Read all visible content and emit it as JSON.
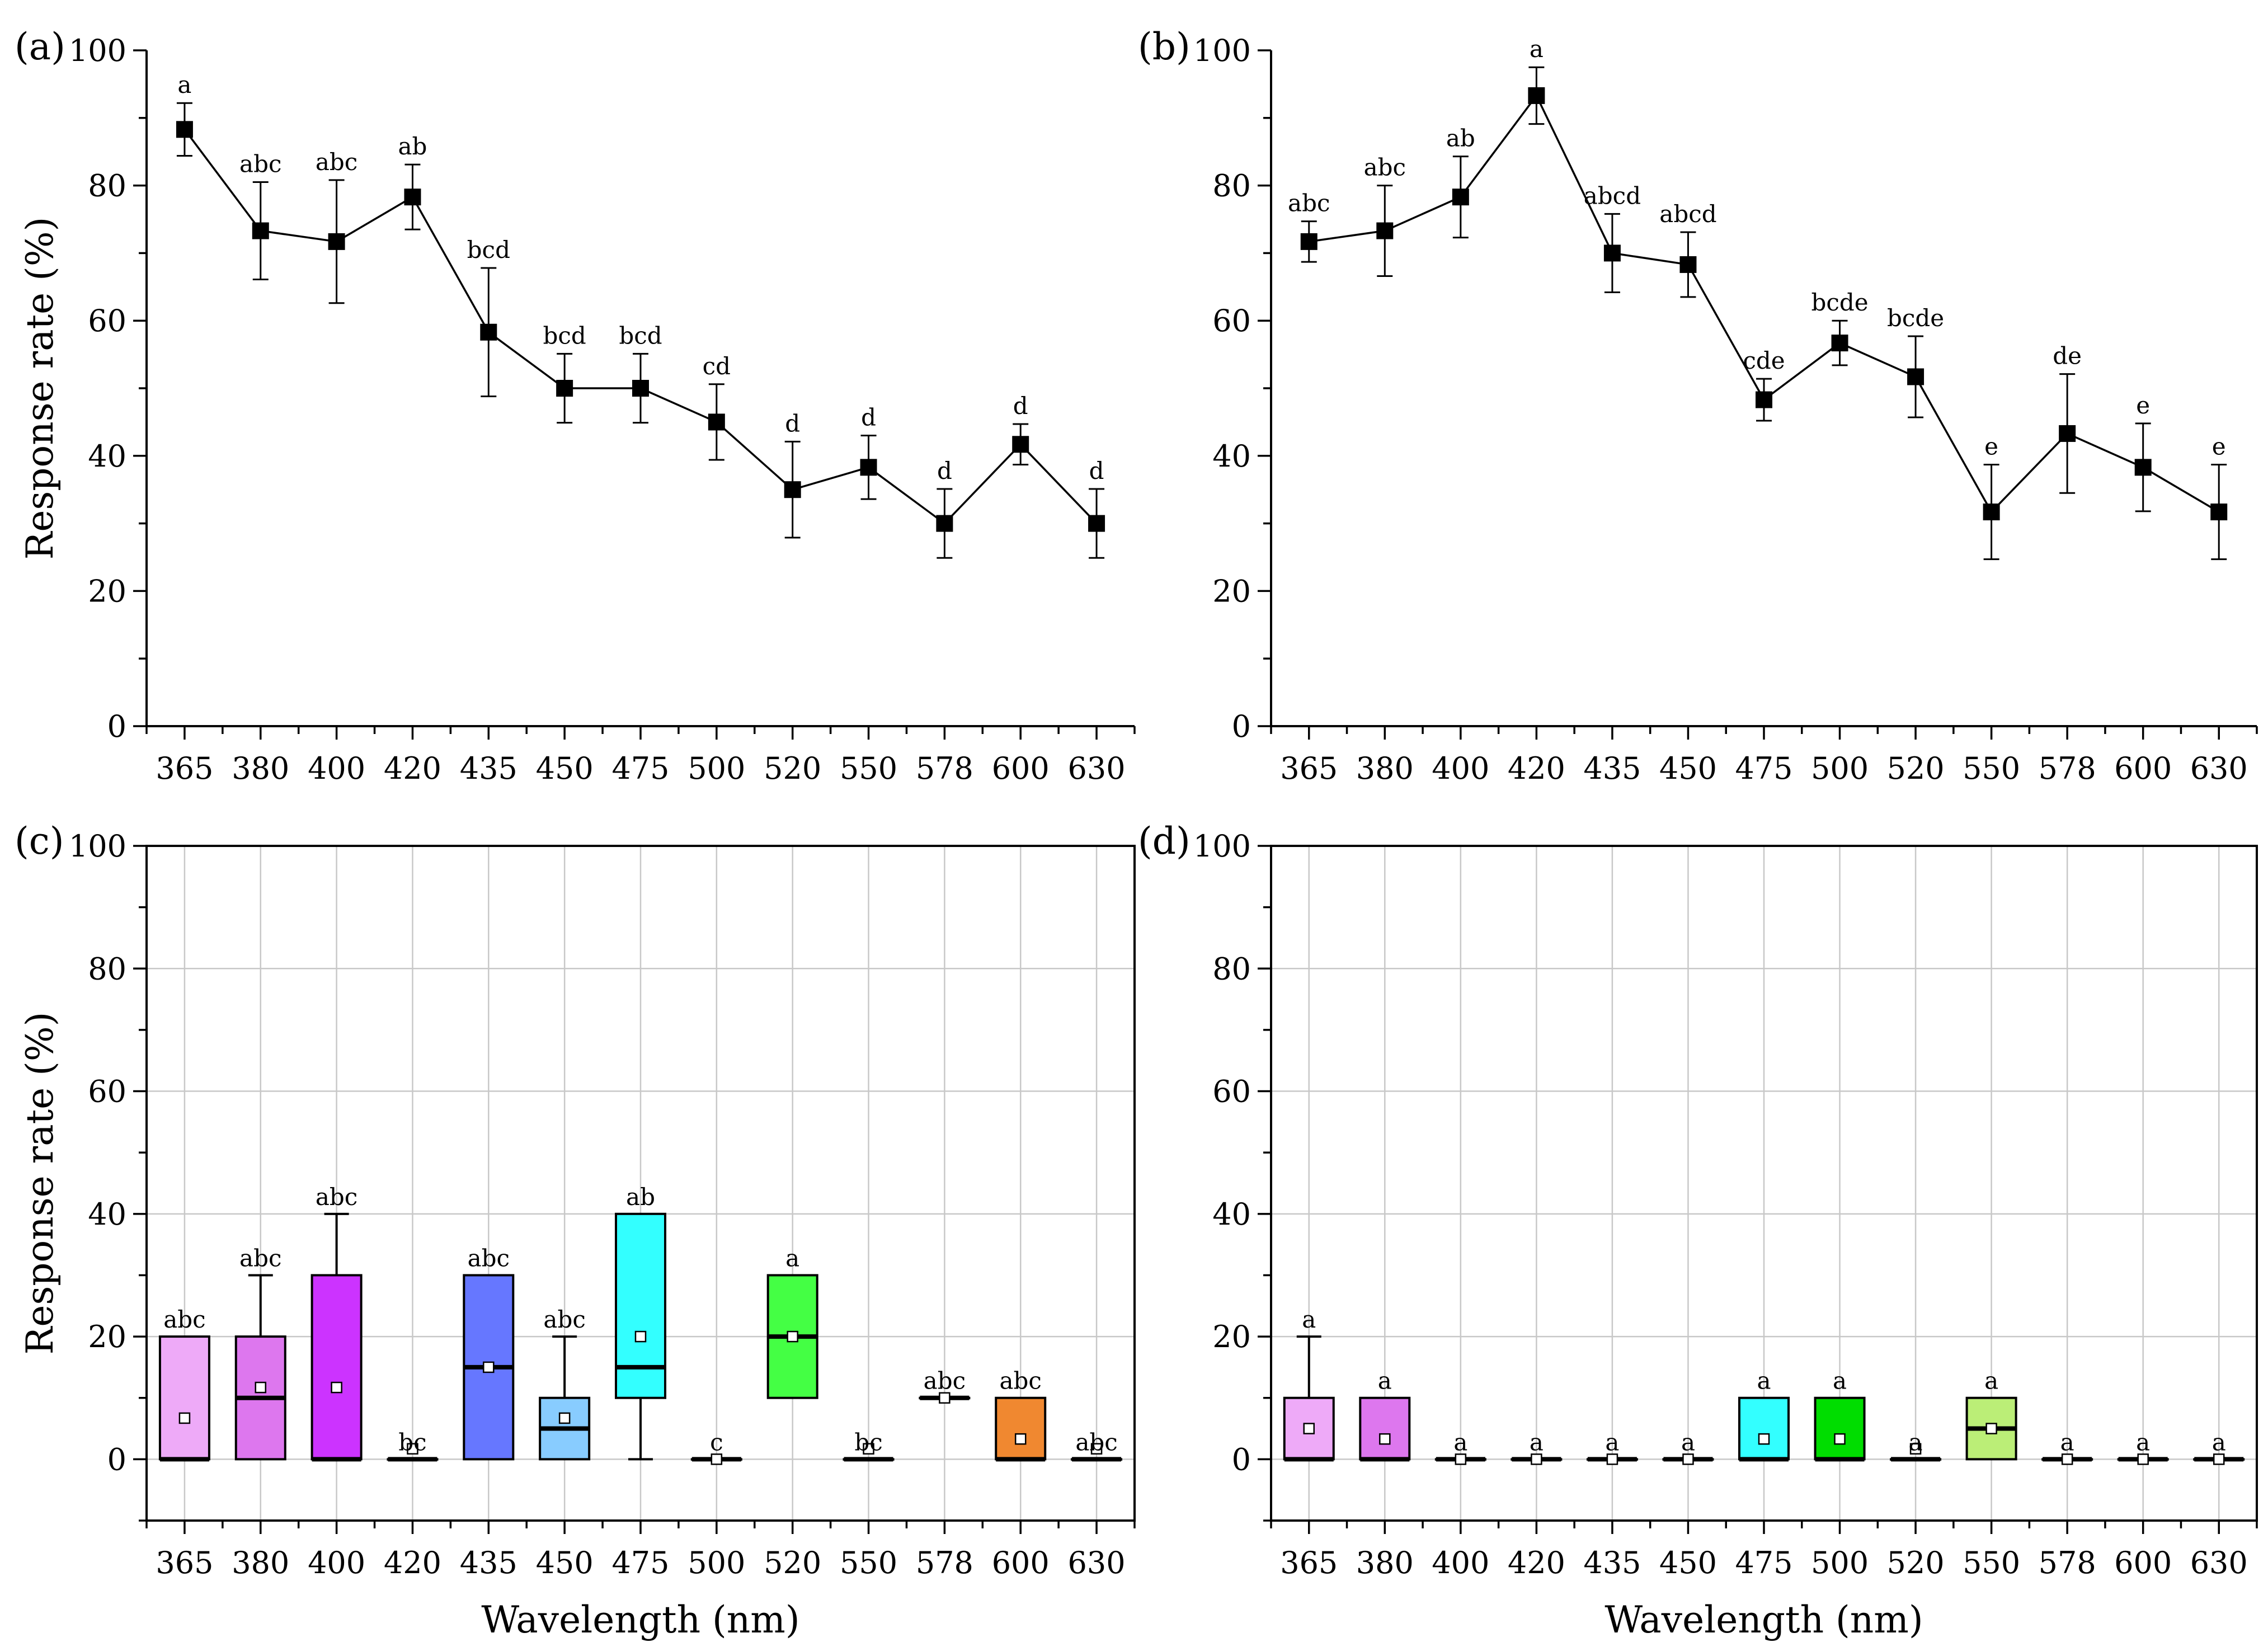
{
  "chart_data": [
    {
      "panel": "(a)",
      "type": "line",
      "title": "",
      "xlabel": "",
      "ylabel": "Response rate (%)",
      "ylim": [
        0,
        100
      ],
      "yticks": [
        0,
        20,
        40,
        60,
        80,
        100
      ],
      "grid": false,
      "categories": [
        "365",
        "380",
        "400",
        "420",
        "435",
        "450",
        "475",
        "500",
        "520",
        "550",
        "578",
        "600",
        "630"
      ],
      "series": [
        {
          "values": [
            88.3,
            73.3,
            71.7,
            78.3,
            58.3,
            50.0,
            50.0,
            45.0,
            35.0,
            38.3,
            30.0,
            41.7,
            30.0
          ],
          "error": [
            3.9,
            7.2,
            9.1,
            4.8,
            9.5,
            5.1,
            5.1,
            5.6,
            7.1,
            4.7,
            5.1,
            3.0,
            5.1
          ],
          "letters": [
            "a",
            "abc",
            "abc",
            "ab",
            "bcd",
            "bcd",
            "bcd",
            "cd",
            "d",
            "d",
            "d",
            "d",
            "d"
          ]
        }
      ]
    },
    {
      "panel": "(b)",
      "type": "line",
      "title": "",
      "xlabel": "",
      "ylabel": "",
      "ylim": [
        0,
        100
      ],
      "yticks": [
        0,
        20,
        40,
        60,
        80,
        100
      ],
      "grid": false,
      "categories": [
        "365",
        "380",
        "400",
        "420",
        "435",
        "450",
        "475",
        "500",
        "520",
        "550",
        "578",
        "600",
        "630"
      ],
      "series": [
        {
          "values": [
            71.7,
            73.3,
            78.3,
            93.3,
            70.0,
            68.3,
            48.3,
            56.7,
            51.7,
            31.7,
            43.3,
            38.3,
            31.7
          ],
          "error": [
            3.0,
            6.7,
            6.0,
            4.2,
            5.8,
            4.8,
            3.1,
            3.3,
            6.0,
            7.0,
            8.8,
            6.5,
            7.0
          ],
          "letters": [
            "abc",
            "abc",
            "ab",
            "a",
            "abcd",
            "abcd",
            "cde",
            "bcde",
            "bcde",
            "e",
            "de",
            "e",
            "e"
          ]
        }
      ]
    },
    {
      "panel": "(c)",
      "type": "box",
      "title": "",
      "xlabel": "Wavelength (nm)",
      "ylabel": "Response rate (%)",
      "ylim": [
        -10,
        100
      ],
      "yticks": [
        0,
        20,
        40,
        60,
        80,
        100
      ],
      "grid": true,
      "categories": [
        "365",
        "380",
        "400",
        "420",
        "435",
        "450",
        "475",
        "500",
        "520",
        "550",
        "578",
        "600",
        "630"
      ],
      "boxes": [
        {
          "q1": 0,
          "median": 0,
          "q3": 20,
          "whisker_low": 0,
          "whisker_high": 20,
          "mean": 6.7,
          "color": "#eeaaf8",
          "letter": "abc"
        },
        {
          "q1": 0,
          "median": 10,
          "q3": 20,
          "whisker_low": 0,
          "whisker_high": 30,
          "mean": 11.7,
          "color": "#dd77ee",
          "letter": "abc"
        },
        {
          "q1": 0,
          "median": 0,
          "q3": 30,
          "whisker_low": 0,
          "whisker_high": 40,
          "mean": 11.7,
          "color": "#cc33ff",
          "letter": "abc"
        },
        {
          "q1": 0,
          "median": 0,
          "q3": 0,
          "whisker_low": 0,
          "whisker_high": 0,
          "mean": 1.7,
          "color": "#ffffff",
          "letter": "bc"
        },
        {
          "q1": 0,
          "median": 15,
          "q3": 30,
          "whisker_low": 0,
          "whisker_high": 30,
          "mean": 15.0,
          "color": "#6677ff",
          "letter": "abc"
        },
        {
          "q1": 0,
          "median": 5,
          "q3": 10,
          "whisker_low": 0,
          "whisker_high": 20,
          "mean": 6.7,
          "color": "#88ccff",
          "letter": "abc"
        },
        {
          "q1": 10,
          "median": 15,
          "q3": 40,
          "whisker_low": 0,
          "whisker_high": 40,
          "mean": 20.0,
          "color": "#33ffff",
          "letter": "ab"
        },
        {
          "q1": 0,
          "median": 0,
          "q3": 0,
          "whisker_low": 0,
          "whisker_high": 0,
          "mean": 0,
          "color": "#ffffff",
          "letter": "c"
        },
        {
          "q1": 10,
          "median": 20,
          "q3": 30,
          "whisker_low": 10,
          "whisker_high": 30,
          "mean": 20.0,
          "color": "#44ff44",
          "letter": "a"
        },
        {
          "q1": 0,
          "median": 0,
          "q3": 0,
          "whisker_low": 0,
          "whisker_high": 0,
          "mean": 1.7,
          "color": "#ffffff",
          "letter": "bc"
        },
        {
          "q1": 10,
          "median": 10,
          "q3": 10,
          "whisker_low": 10,
          "whisker_high": 10,
          "mean": 10.0,
          "color": "#ffffff",
          "letter": "abc"
        },
        {
          "q1": 0,
          "median": 0,
          "q3": 10,
          "whisker_low": 0,
          "whisker_high": 10,
          "mean": 3.3,
          "color": "#f08830",
          "letter": "abc"
        },
        {
          "q1": 0,
          "median": 0,
          "q3": 0,
          "whisker_low": 0,
          "whisker_high": 0,
          "mean": 1.7,
          "color": "#ffffff",
          "letter": "abc"
        }
      ]
    },
    {
      "panel": "(d)",
      "type": "box",
      "title": "",
      "xlabel": "Wavelength (nm)",
      "ylabel": "",
      "ylim": [
        -10,
        100
      ],
      "yticks": [
        0,
        20,
        40,
        60,
        80,
        100
      ],
      "grid": true,
      "categories": [
        "365",
        "380",
        "400",
        "420",
        "435",
        "450",
        "475",
        "500",
        "520",
        "550",
        "578",
        "600",
        "630"
      ],
      "boxes": [
        {
          "q1": 0,
          "median": 0,
          "q3": 10,
          "whisker_low": 0,
          "whisker_high": 20,
          "mean": 5.0,
          "color": "#eeaaf8",
          "letter": "a"
        },
        {
          "q1": 0,
          "median": 0,
          "q3": 10,
          "whisker_low": 0,
          "whisker_high": 10,
          "mean": 3.3,
          "color": "#dd77ee",
          "letter": "a"
        },
        {
          "q1": 0,
          "median": 0,
          "q3": 0,
          "whisker_low": 0,
          "whisker_high": 0,
          "mean": 0,
          "color": "#ffffff",
          "letter": "a"
        },
        {
          "q1": 0,
          "median": 0,
          "q3": 0,
          "whisker_low": 0,
          "whisker_high": 0,
          "mean": 0,
          "color": "#ffffff",
          "letter": "a"
        },
        {
          "q1": 0,
          "median": 0,
          "q3": 0,
          "whisker_low": 0,
          "whisker_high": 0,
          "mean": 0,
          "color": "#ffffff",
          "letter": "a"
        },
        {
          "q1": 0,
          "median": 0,
          "q3": 0,
          "whisker_low": 0,
          "whisker_high": 0,
          "mean": 0,
          "color": "#ffffff",
          "letter": "a"
        },
        {
          "q1": 0,
          "median": 0,
          "q3": 10,
          "whisker_low": 0,
          "whisker_high": 10,
          "mean": 3.3,
          "color": "#33ffff",
          "letter": "a"
        },
        {
          "q1": 0,
          "median": 0,
          "q3": 10,
          "whisker_low": 0,
          "whisker_high": 10,
          "mean": 3.3,
          "color": "#00dd00",
          "letter": "a"
        },
        {
          "q1": 0,
          "median": 0,
          "q3": 0,
          "whisker_low": 0,
          "whisker_high": 0,
          "mean": 1.7,
          "color": "#ffffff",
          "letter": "a"
        },
        {
          "q1": 0,
          "median": 5,
          "q3": 10,
          "whisker_low": 0,
          "whisker_high": 10,
          "mean": 5.0,
          "color": "#bbee77",
          "letter": "a"
        },
        {
          "q1": 0,
          "median": 0,
          "q3": 0,
          "whisker_low": 0,
          "whisker_high": 0,
          "mean": 0,
          "color": "#ffffff",
          "letter": "a"
        },
        {
          "q1": 0,
          "median": 0,
          "q3": 0,
          "whisker_low": 0,
          "whisker_high": 0,
          "mean": 0,
          "color": "#ffffff",
          "letter": "a"
        },
        {
          "q1": 0,
          "median": 0,
          "q3": 0,
          "whisker_low": 0,
          "whisker_high": 0,
          "mean": 0,
          "color": "#ffffff",
          "letter": "a"
        }
      ]
    }
  ]
}
